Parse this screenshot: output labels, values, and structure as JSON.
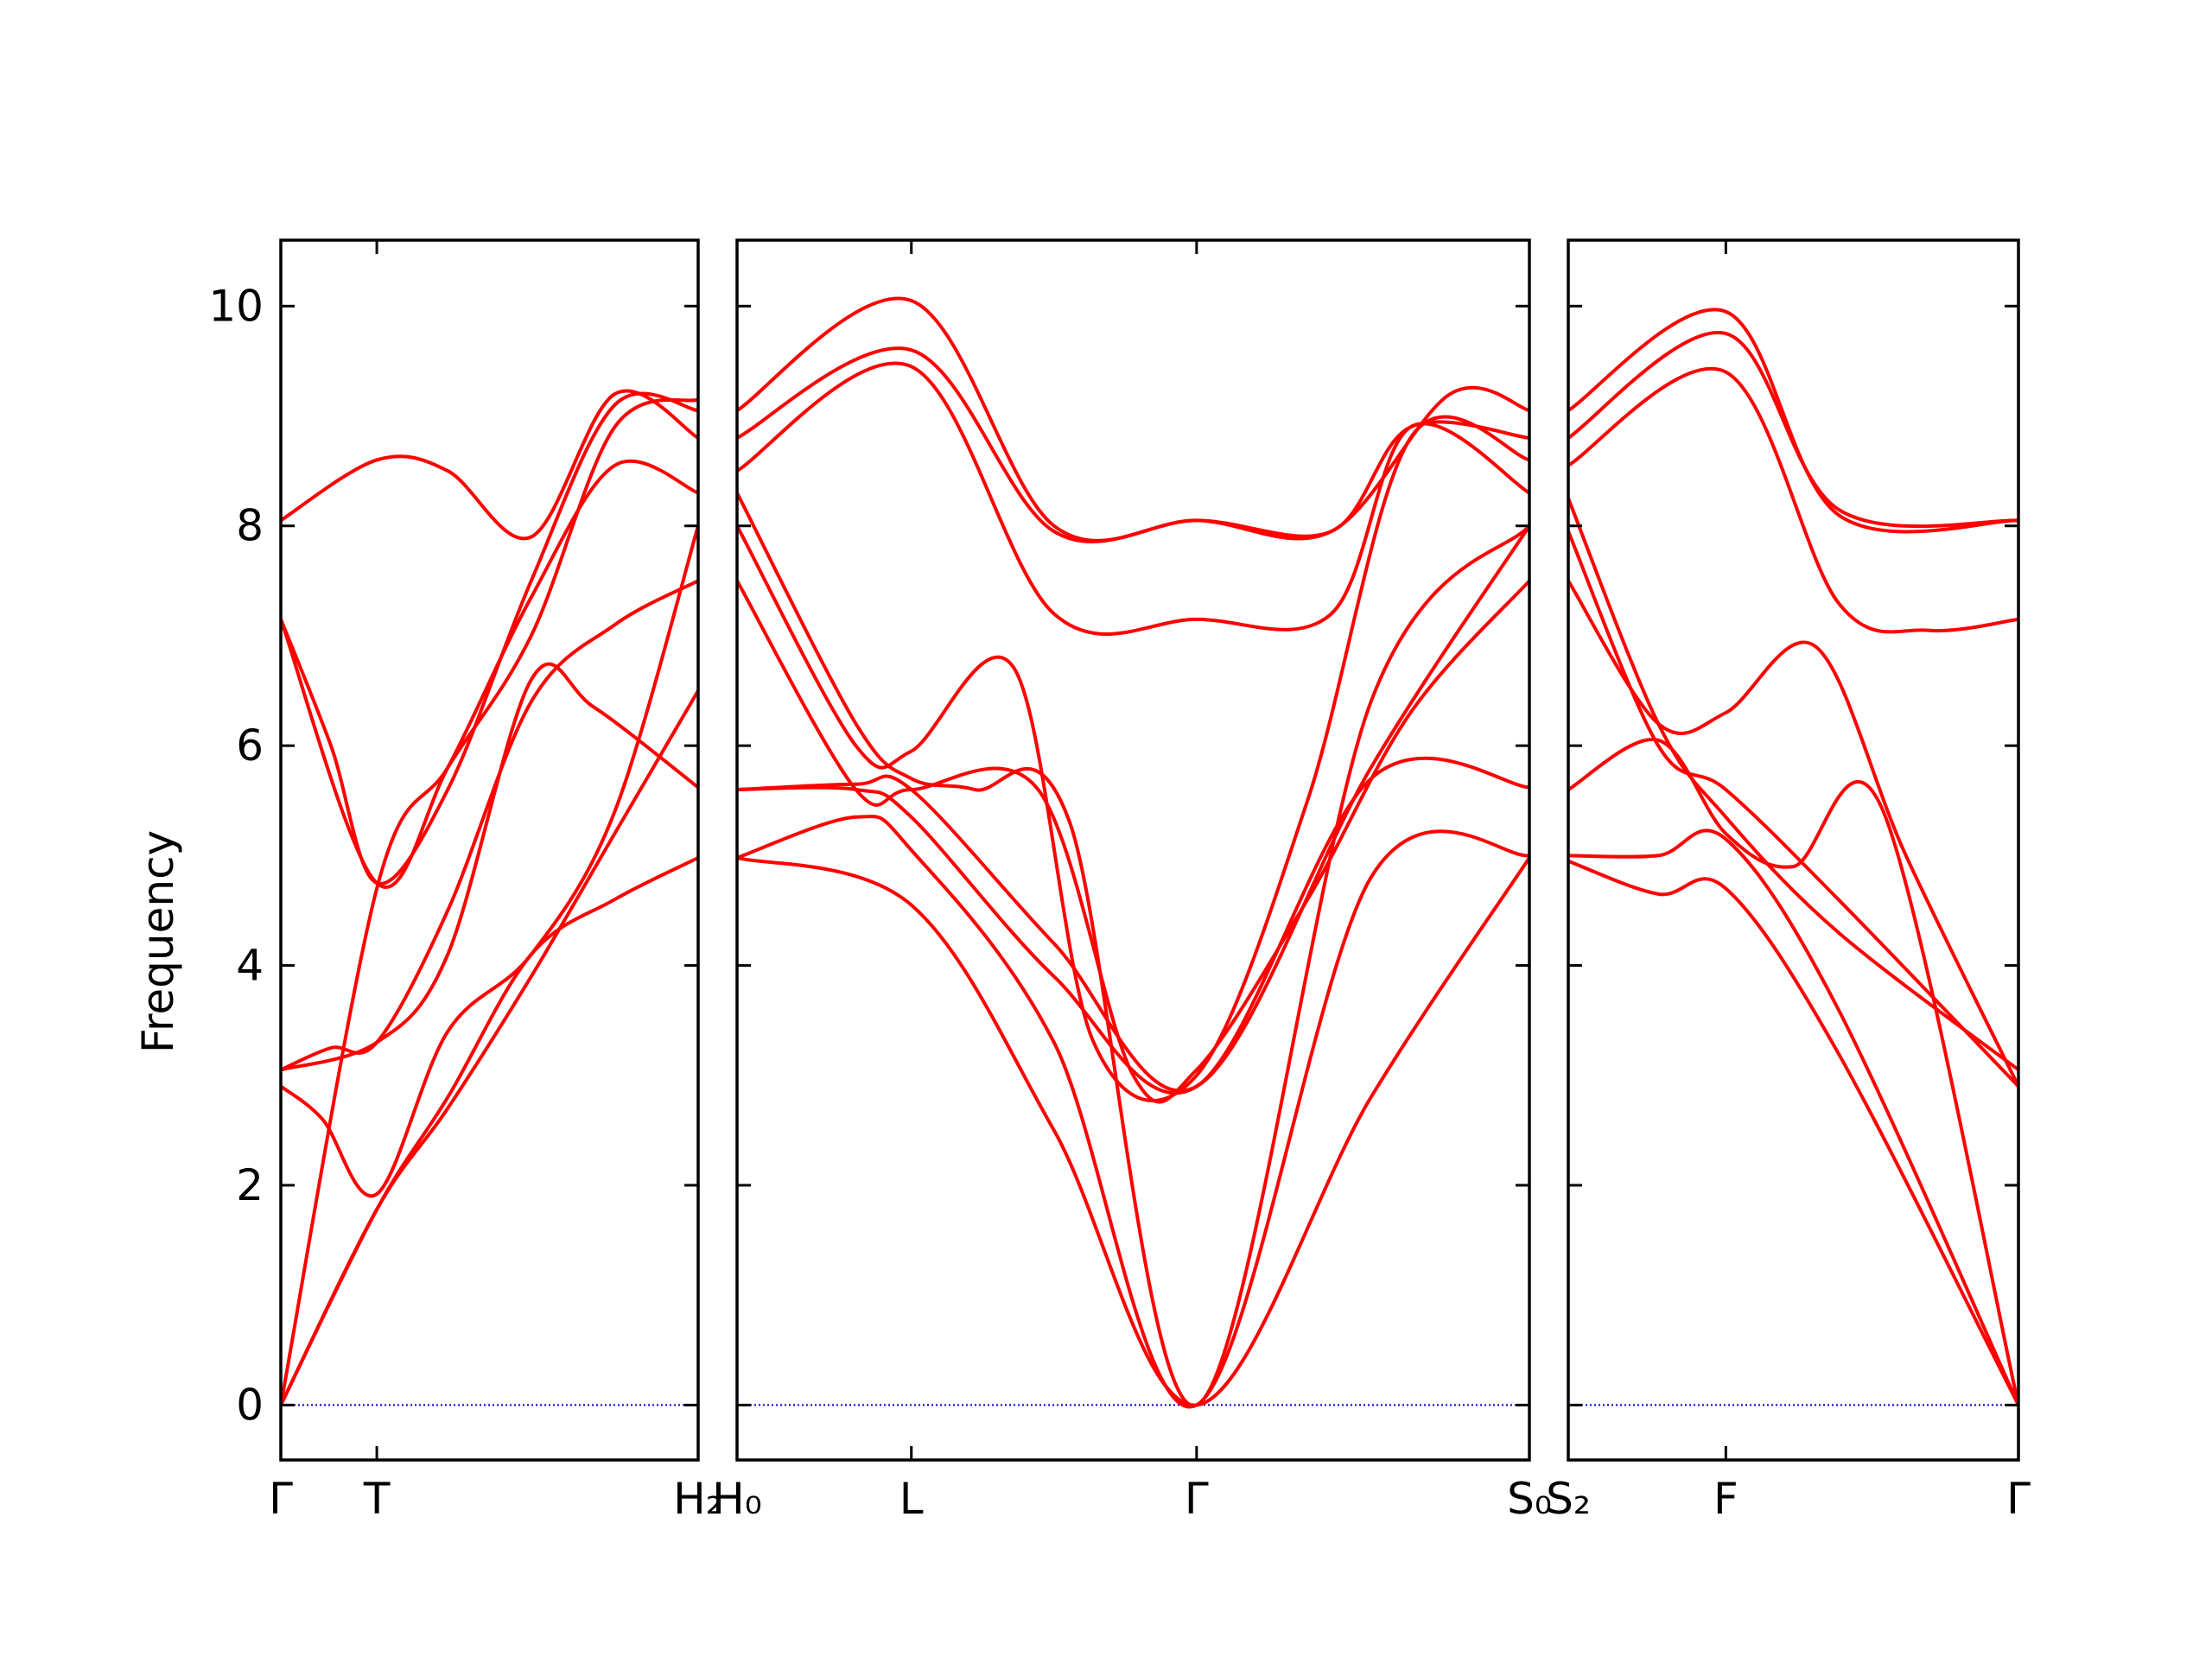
{
  "chart_data": {
    "type": "line",
    "ylabel": "Frequency",
    "ylim": [
      -0.5,
      10.6
    ],
    "yticks": [
      0,
      2,
      4,
      6,
      8,
      10
    ],
    "grid": false,
    "colors": {
      "bands": "#ff0000",
      "zero_line": "#0000cc",
      "frame": "#000000"
    },
    "panels": [
      {
        "name": "panel-1",
        "qlim": [
          0,
          1
        ],
        "qticks": [
          {
            "q": 0,
            "label": "Γ"
          },
          {
            "q": 0.23,
            "label": "T"
          },
          {
            "q": 1,
            "label": "H₂"
          }
        ],
        "bands": [
          [
            [
              0,
              0
            ],
            [
              0.23,
              1.78
            ],
            [
              0.4,
              2.7
            ],
            [
              0.6,
              3.9
            ],
            [
              0.8,
              5.2
            ],
            [
              1,
              6.5
            ]
          ],
          [
            [
              0,
              0
            ],
            [
              0.23,
              1.78
            ],
            [
              0.4,
              2.8
            ],
            [
              0.6,
              4.1
            ],
            [
              0.8,
              4.6
            ],
            [
              1,
              4.98
            ]
          ],
          [
            [
              0,
              0
            ],
            [
              0.23,
              4.7
            ],
            [
              0.4,
              5.8
            ],
            [
              0.6,
              7.0
            ],
            [
              0.8,
              8.9
            ],
            [
              1,
              9.15
            ]
          ],
          [
            [
              0,
              2.9
            ],
            [
              0.1,
              2.6
            ],
            [
              0.23,
              1.92
            ],
            [
              0.4,
              3.4
            ],
            [
              0.6,
              4.1
            ],
            [
              0.8,
              5.4
            ],
            [
              1,
              8.0
            ]
          ],
          [
            [
              0,
              3.05
            ],
            [
              0.12,
              3.25
            ],
            [
              0.23,
              3.3
            ],
            [
              0.4,
              4.5
            ],
            [
              0.6,
              6.4
            ],
            [
              0.8,
              7.1
            ],
            [
              1,
              7.5
            ]
          ],
          [
            [
              0,
              3.05
            ],
            [
              0.23,
              3.3
            ],
            [
              0.4,
              4.1
            ],
            [
              0.6,
              6.6
            ],
            [
              0.75,
              6.35
            ],
            [
              1,
              5.62
            ]
          ],
          [
            [
              0,
              7.15
            ],
            [
              0.12,
              6.0
            ],
            [
              0.23,
              4.75
            ],
            [
              0.4,
              5.6
            ],
            [
              0.6,
              7.5
            ],
            [
              0.8,
              9.1
            ],
            [
              1,
              9.05
            ]
          ],
          [
            [
              0,
              7.15
            ],
            [
              0.23,
              4.75
            ],
            [
              0.4,
              5.8
            ],
            [
              0.6,
              7.35
            ],
            [
              0.8,
              8.55
            ],
            [
              1,
              8.3
            ]
          ],
          [
            [
              0,
              8.05
            ],
            [
              0.23,
              8.6
            ],
            [
              0.4,
              8.5
            ],
            [
              0.6,
              7.9
            ],
            [
              0.8,
              9.2
            ],
            [
              1,
              8.8
            ]
          ]
        ]
      },
      {
        "name": "panel-2",
        "qlim": [
          0,
          1
        ],
        "qticks": [
          {
            "q": 0,
            "label": "H₀"
          },
          {
            "q": 0.22,
            "label": "L"
          },
          {
            "q": 0.58,
            "label": "Γ"
          },
          {
            "q": 1,
            "label": "S₀"
          }
        ],
        "bands": [
          [
            [
              0,
              4.98
            ],
            [
              0.22,
              4.55
            ],
            [
              0.4,
              2.5
            ],
            [
              0.58,
              0
            ],
            [
              0.8,
              2.8
            ],
            [
              1,
              4.98
            ]
          ],
          [
            [
              0,
              4.98
            ],
            [
              0.15,
              5.35
            ],
            [
              0.22,
              5.05
            ],
            [
              0.4,
              3.3
            ],
            [
              0.58,
              0
            ],
            [
              0.8,
              4.8
            ],
            [
              1,
              5.0
            ]
          ],
          [
            [
              0,
              5.6
            ],
            [
              0.15,
              5.6
            ],
            [
              0.22,
              5.35
            ],
            [
              0.4,
              3.9
            ],
            [
              0.58,
              2.9
            ],
            [
              0.8,
              5.7
            ],
            [
              1,
              5.62
            ]
          ],
          [
            [
              0,
              5.6
            ],
            [
              0.15,
              5.65
            ],
            [
              0.22,
              5.6
            ],
            [
              0.4,
              4.2
            ],
            [
              0.58,
              2.9
            ],
            [
              0.8,
              5.8
            ],
            [
              1,
              8.0
            ]
          ],
          [
            [
              0,
              7.5
            ],
            [
              0.15,
              5.6
            ],
            [
              0.22,
              5.6
            ],
            [
              0.38,
              5.6
            ],
            [
              0.5,
              3.0
            ],
            [
              0.58,
              3.05
            ],
            [
              0.72,
              4.6
            ],
            [
              0.85,
              6.3
            ],
            [
              1,
              7.5
            ]
          ],
          [
            [
              0,
              8.0
            ],
            [
              0.15,
              6.0
            ],
            [
              0.22,
              5.95
            ],
            [
              0.35,
              6.7
            ],
            [
              0.45,
              3.3
            ],
            [
              0.58,
              3.0
            ],
            [
              0.72,
              5.5
            ],
            [
              0.85,
              8.8
            ],
            [
              1,
              8.6
            ]
          ],
          [
            [
              0,
              8.3
            ],
            [
              0.15,
              6.2
            ],
            [
              0.22,
              5.7
            ],
            [
              0.3,
              5.6
            ],
            [
              0.42,
              5.3
            ],
            [
              0.58,
              0
            ],
            [
              0.8,
              6.4
            ],
            [
              1,
              8.0
            ]
          ],
          [
            [
              0,
              8.5
            ],
            [
              0.22,
              9.45
            ],
            [
              0.4,
              7.2
            ],
            [
              0.58,
              7.15
            ],
            [
              0.75,
              7.2
            ],
            [
              0.85,
              8.9
            ],
            [
              1,
              8.3
            ]
          ],
          [
            [
              0,
              8.8
            ],
            [
              0.22,
              9.6
            ],
            [
              0.4,
              7.95
            ],
            [
              0.58,
              8.05
            ],
            [
              0.75,
              7.95
            ],
            [
              0.85,
              8.9
            ],
            [
              1,
              8.8
            ]
          ],
          [
            [
              0,
              9.05
            ],
            [
              0.22,
              10.05
            ],
            [
              0.4,
              8.0
            ],
            [
              0.58,
              8.05
            ],
            [
              0.75,
              7.95
            ],
            [
              0.9,
              9.2
            ],
            [
              1,
              9.05
            ]
          ]
        ]
      },
      {
        "name": "panel-3",
        "qlim": [
          0,
          1
        ],
        "qticks": [
          {
            "q": 0,
            "label": "S₂"
          },
          {
            "q": 0.35,
            "label": "F"
          },
          {
            "q": 1,
            "label": "Γ"
          }
        ],
        "bands": [
          [
            [
              0,
              4.95
            ],
            [
              0.2,
              4.65
            ],
            [
              0.35,
              4.7
            ],
            [
              0.6,
              3.2
            ],
            [
              1,
              0
            ]
          ],
          [
            [
              0,
              5.0
            ],
            [
              0.2,
              5.0
            ],
            [
              0.35,
              5.15
            ],
            [
              0.6,
              3.6
            ],
            [
              1,
              0
            ]
          ],
          [
            [
              0,
              5.6
            ],
            [
              0.2,
              6.05
            ],
            [
              0.35,
              5.2
            ],
            [
              0.5,
              4.9
            ],
            [
              0.7,
              5.4
            ],
            [
              1,
              0
            ]
          ],
          [
            [
              0,
              7.5
            ],
            [
              0.2,
              6.2
            ],
            [
              0.35,
              6.3
            ],
            [
              0.55,
              6.9
            ],
            [
              0.75,
              5.0
            ],
            [
              1,
              2.9
            ]
          ],
          [
            [
              0,
              7.95
            ],
            [
              0.2,
              6.0
            ],
            [
              0.35,
              5.6
            ],
            [
              0.6,
              4.6
            ],
            [
              1,
              2.9
            ]
          ],
          [
            [
              0,
              8.25
            ],
            [
              0.2,
              6.2
            ],
            [
              0.35,
              5.35
            ],
            [
              0.6,
              4.3
            ],
            [
              1,
              3.05
            ]
          ],
          [
            [
              0,
              8.55
            ],
            [
              0.35,
              9.4
            ],
            [
              0.6,
              7.3
            ],
            [
              0.8,
              7.05
            ],
            [
              1,
              7.15
            ]
          ],
          [
            [
              0,
              8.8
            ],
            [
              0.35,
              9.75
            ],
            [
              0.6,
              8.15
            ],
            [
              1,
              8.05
            ]
          ],
          [
            [
              0,
              9.05
            ],
            [
              0.35,
              9.95
            ],
            [
              0.6,
              8.1
            ],
            [
              1,
              8.05
            ]
          ]
        ]
      }
    ]
  }
}
